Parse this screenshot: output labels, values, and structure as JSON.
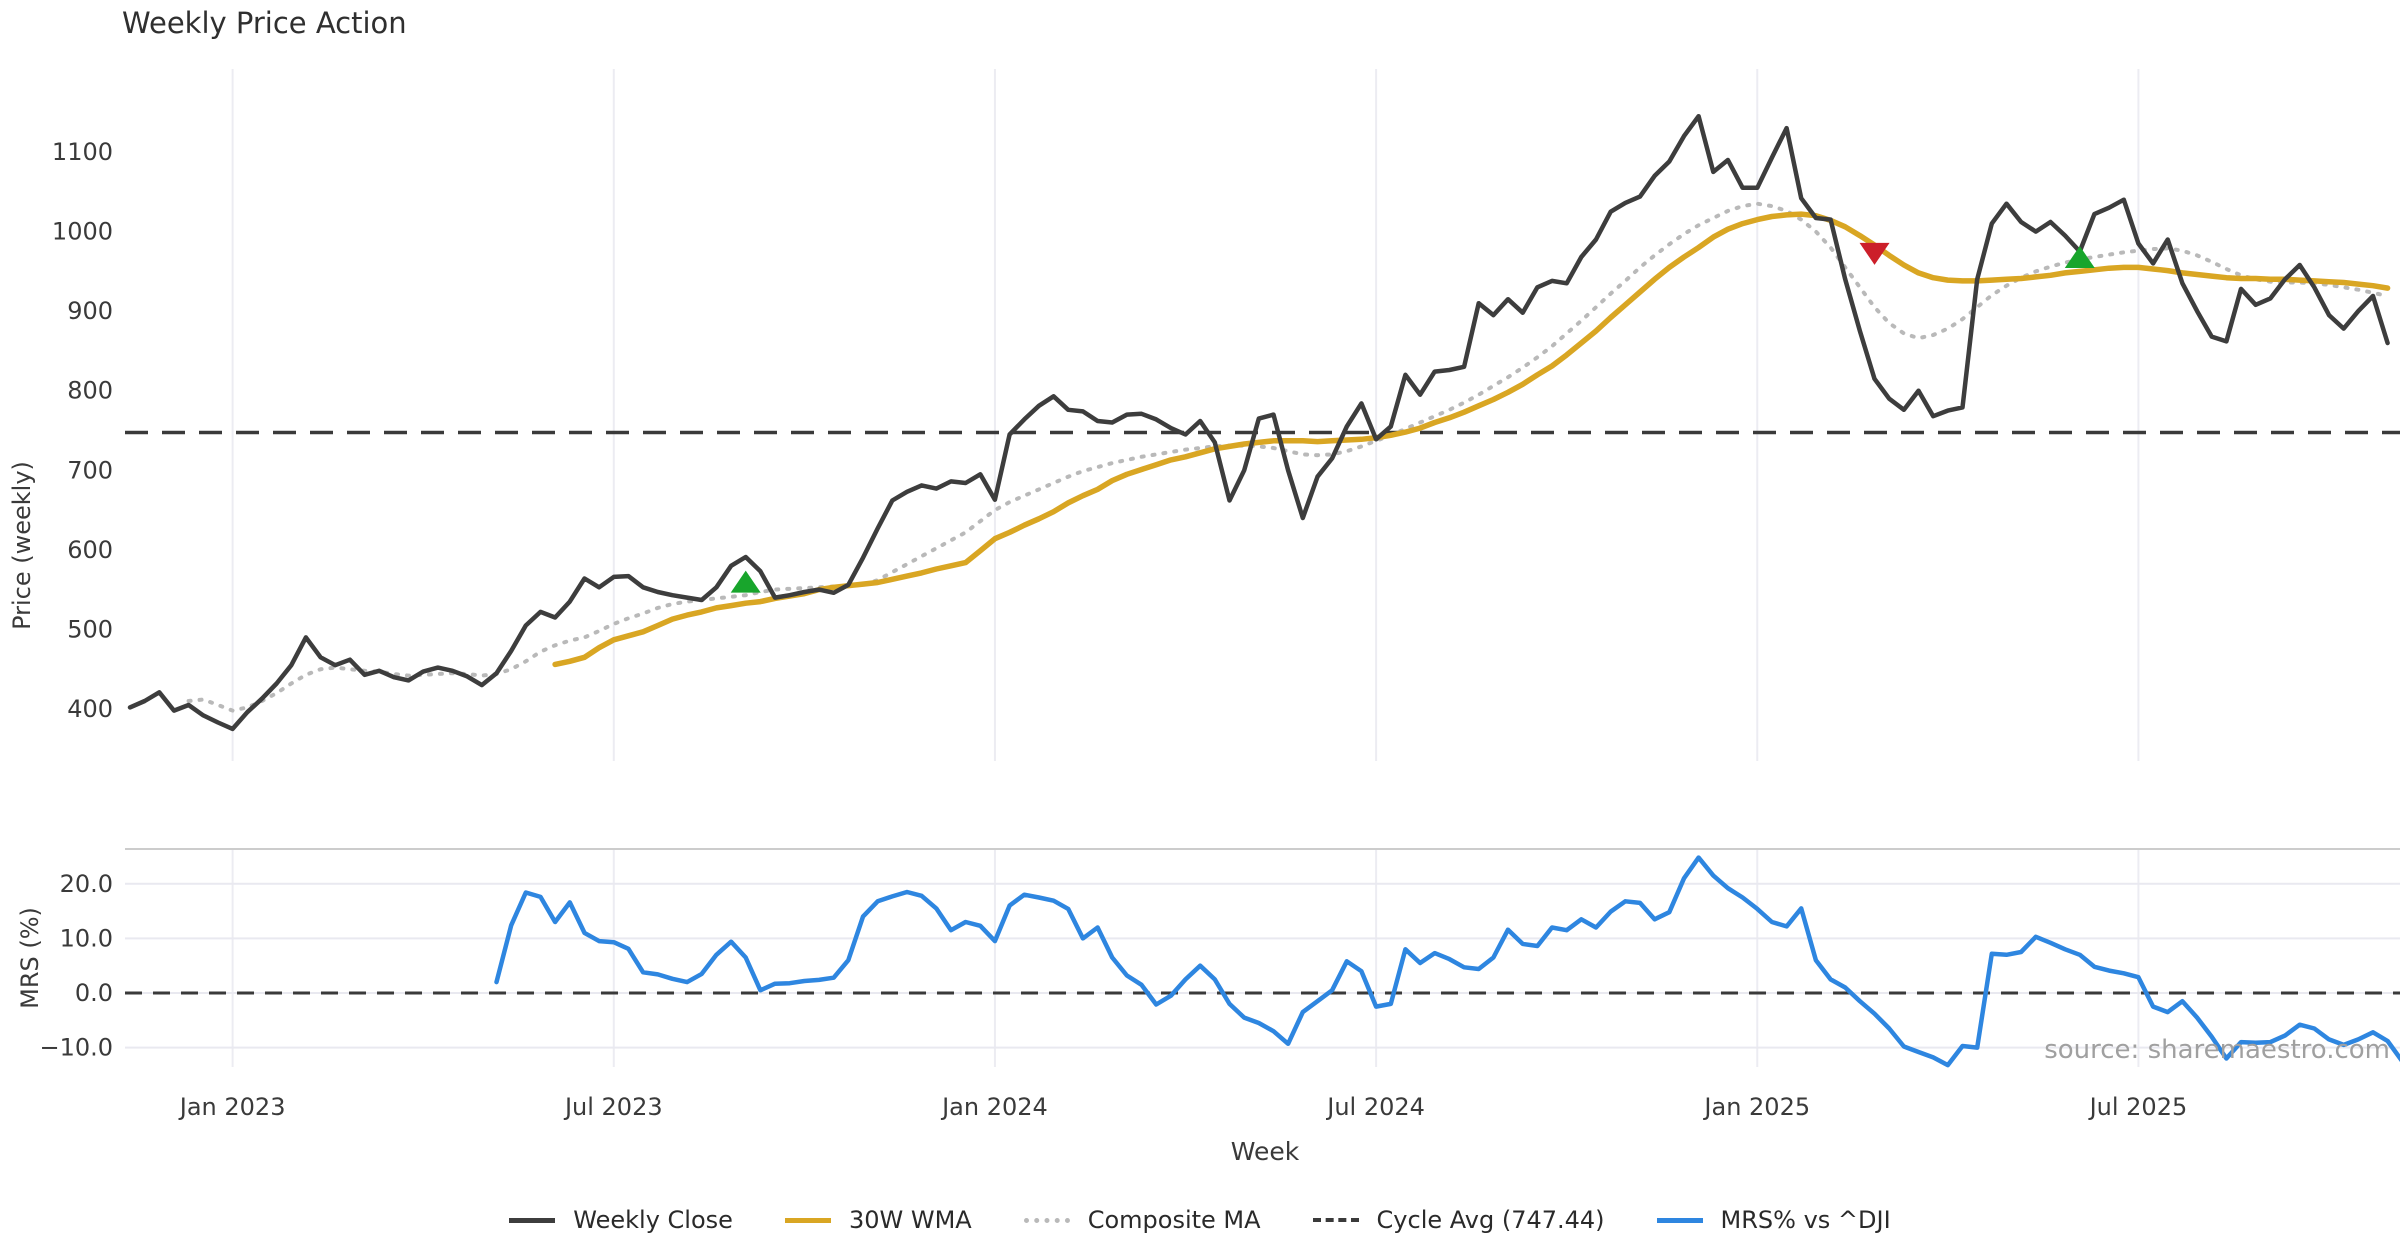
{
  "title": "Weekly Price Action",
  "source_note": "source: sharemaestro.com",
  "colors": {
    "close": "#3d3d3d",
    "wma": "#d9a623",
    "composite": "#b9b9b9",
    "cycle": "#3a3a3a",
    "mrs": "#2e86e0",
    "marker_up": "#18a52c",
    "marker_down": "#cc1f2a",
    "grid": "#ececf2",
    "spine": "#cccccc",
    "tick_text": "#3a3a3a",
    "source_text": "#a0a0a0"
  },
  "chart_data": {
    "type": "line",
    "title": "Weekly Price Action",
    "xlabel": "Week",
    "x_unit": "weekly",
    "x_start_date": "2022-11-14",
    "n_weeks": 155,
    "x_ticks": [
      {
        "label": "Jan 2023",
        "week": 7
      },
      {
        "label": "Jul 2023",
        "week": 33
      },
      {
        "label": "Jan 2024",
        "week": 59
      },
      {
        "label": "Jul 2024",
        "week": 85
      },
      {
        "label": "Jan 2025",
        "week": 111
      },
      {
        "label": "Jul 2025",
        "week": 137
      }
    ],
    "panels": [
      {
        "id": "price",
        "ylabel": "Price (weekly)",
        "ylim": [
          335,
          1204
        ],
        "yticks": [
          400,
          500,
          600,
          700,
          800,
          900,
          1000,
          1100
        ],
        "grid": "vertical-only",
        "cycle_avg": 747.44,
        "series": [
          {
            "name": "Weekly Close",
            "style": "solid",
            "color_key": "close",
            "start_week": 0,
            "values": [
              402,
              410,
              421,
              398,
              405,
              392,
              383,
              375,
              396,
              413,
              432,
              455,
              490,
              465,
              455,
              462,
              443,
              448,
              440,
              436,
              447,
              452,
              448,
              441,
              430,
              445,
              473,
              505,
              522,
              515,
              535,
              564,
              553,
              566,
              567,
              553,
              547,
              543,
              540,
              537,
              553,
              580,
              591,
              573,
              540,
              543,
              547,
              550,
              546,
              556,
              590,
              627,
              662,
              673,
              681,
              677,
              686,
              684,
              695,
              663,
              745,
              764,
              781,
              793,
              776,
              774,
              762,
              760,
              770,
              771,
              764,
              753,
              745,
              762,
              735,
              662,
              700,
              765,
              770,
              700,
              640,
              692,
              715,
              755,
              784,
              739,
              755,
              820,
              795,
              824,
              826,
              830,
              910,
              895,
              915,
              898,
              930,
              938,
              935,
              968,
              990,
              1025,
              1036,
              1044,
              1070,
              1088,
              1120,
              1145,
              1075,
              1090,
              1055,
              1055,
              1093,
              1130,
              1042,
              1017,
              1015,
              940,
              875,
              815,
              790,
              776,
              800,
              768,
              775,
              779,
              940,
              1010,
              1035,
              1012,
              1000,
              1012,
              995,
              975,
              1022,
              1030,
              1040,
              985,
              960,
              990,
              935,
              900,
              868,
              862,
              928,
              908,
              916,
              940,
              958,
              930,
              895,
              878,
              900,
              919,
              860
            ]
          },
          {
            "name": "30W WMA",
            "style": "solid",
            "color_key": "wma",
            "start_week": 29,
            "values": [
              456,
              460,
              465,
              477,
              487,
              492,
              497,
              505,
              513,
              518,
              522,
              527,
              530,
              533,
              535,
              539,
              542,
              545,
              550,
              553,
              555,
              557,
              559,
              563,
              567,
              571,
              576,
              580,
              584,
              599,
              614,
              622,
              631,
              639,
              648,
              659,
              668,
              676,
              687,
              695,
              701,
              707,
              713,
              717,
              722,
              727,
              730,
              733,
              735,
              737,
              737,
              737,
              736,
              737,
              738,
              739,
              741,
              744,
              748,
              753,
              760,
              766,
              773,
              781,
              789,
              798,
              808,
              820,
              831,
              845,
              860,
              875,
              892,
              908,
              924,
              940,
              955,
              968,
              980,
              993,
              1003,
              1010,
              1015,
              1019,
              1021,
              1022,
              1020,
              1014,
              1006,
              995,
              983,
              970,
              958,
              948,
              942,
              939,
              938,
              938,
              939,
              940,
              941,
              943,
              945,
              948,
              950,
              952,
              954,
              955,
              955,
              953,
              951,
              948,
              946,
              944,
              942,
              941,
              941,
              940,
              940,
              939,
              938,
              937,
              936,
              934,
              932,
              929
            ]
          },
          {
            "name": "Composite MA",
            "style": "dotted",
            "color_key": "composite",
            "start_week": 4,
            "values": [
              410,
              412,
              405,
              398,
              402,
              410,
              420,
              432,
              443,
              450,
              452,
              450,
              448,
              447,
              444,
              442,
              443,
              444,
              445,
              444,
              442,
              444,
              450,
              460,
              472,
              480,
              486,
              490,
              498,
              507,
              514,
              520,
              527,
              532,
              535,
              537,
              539,
              541,
              543,
              547,
              550,
              551,
              552,
              553,
              554,
              555,
              556,
              562,
              572,
              582,
              592,
              602,
              612,
              622,
              636,
              650,
              660,
              668,
              676,
              684,
              692,
              699,
              704,
              709,
              713,
              717,
              720,
              723,
              726,
              728,
              730,
              731,
              731,
              730,
              728,
              724,
              720,
              719,
              720,
              724,
              730,
              737,
              744,
              752,
              760,
              768,
              776,
              785,
              795,
              806,
              817,
              829,
              842,
              856,
              872,
              888,
              905,
              922,
              938,
              955,
              970,
              984,
              997,
              1008,
              1017,
              1026,
              1032,
              1035,
              1032,
              1026,
              1015,
              1000,
              980,
              955,
              930,
              905,
              885,
              872,
              866,
              870,
              878,
              890,
              905,
              920,
              932,
              942,
              950,
              956,
              961,
              965,
              968,
              971,
              974,
              976,
              978,
              979,
              976,
              970,
              962,
              953,
              945,
              940,
              937,
              936,
              936,
              935,
              933,
              930,
              927,
              923,
              919
            ]
          }
        ],
        "markers": [
          {
            "week": 42,
            "value": 560,
            "shape": "triangle-up",
            "color_key": "marker_up"
          },
          {
            "week": 119,
            "value": 972,
            "shape": "triangle-down",
            "color_key": "marker_down"
          },
          {
            "week": 133,
            "value": 968,
            "shape": "triangle-up",
            "color_key": "marker_up"
          }
        ]
      },
      {
        "id": "mrs",
        "ylabel": "MRS (%)",
        "ylim": [
          -13.6,
          26.4
        ],
        "yticks": [
          20.0,
          10.0,
          0.0,
          -10.0
        ],
        "ytick_labels": [
          "20.0",
          "10.0",
          "0.0",
          "−10.0"
        ],
        "zero_line": 0,
        "series": [
          {
            "name": "MRS% vs ^DJI",
            "style": "solid",
            "color_key": "mrs",
            "start_week": 25,
            "values": [
              2.0,
              12.4,
              18.4,
              17.6,
              13.0,
              16.6,
              11.0,
              9.5,
              9.3,
              8.1,
              3.8,
              3.4,
              2.6,
              2.0,
              3.5,
              7.0,
              9.4,
              6.5,
              0.5,
              1.7,
              1.8,
              2.2,
              2.4,
              2.8,
              6.0,
              14.0,
              16.8,
              17.7,
              18.5,
              17.8,
              15.5,
              11.5,
              13.0,
              12.3,
              9.5,
              16.0,
              18.0,
              17.5,
              16.9,
              15.4,
              10.0,
              12.0,
              6.5,
              3.2,
              1.5,
              -2.1,
              -0.5,
              2.5,
              5.0,
              2.5,
              -2.0,
              -4.5,
              -5.5,
              -7.0,
              -9.3,
              -3.5,
              -1.5,
              0.5,
              5.8,
              4.0,
              -2.5,
              -2.0,
              8.0,
              5.5,
              7.3,
              6.2,
              4.7,
              4.4,
              6.5,
              11.6,
              9.0,
              8.6,
              12.0,
              11.5,
              13.5,
              12.0,
              14.9,
              16.8,
              16.5,
              13.5,
              14.8,
              21.0,
              24.8,
              21.5,
              19.2,
              17.5,
              15.4,
              13.0,
              12.2,
              15.5,
              6.0,
              2.5,
              1.0,
              -1.5,
              -3.8,
              -6.5,
              -9.8,
              -10.8,
              -11.8,
              -13.2,
              -9.7,
              -10.0,
              7.2,
              7.0,
              7.5,
              10.3,
              9.2,
              8.0,
              7.0,
              4.8,
              4.1,
              3.6,
              2.9,
              -2.5,
              -3.5,
              -1.5,
              -4.5,
              -8.0,
              -12.0,
              -9.0,
              -9.1,
              -9.0,
              -7.8,
              -5.8,
              -6.5,
              -8.5,
              -9.5,
              -8.5,
              -7.2,
              -8.8,
              -12.5
            ]
          }
        ]
      }
    ],
    "legend": [
      {
        "label": "Weekly Close",
        "style": "solid",
        "color_key": "close"
      },
      {
        "label": "30W WMA",
        "style": "solid",
        "color_key": "wma"
      },
      {
        "label": "Composite MA",
        "style": "dotted",
        "color_key": "composite"
      },
      {
        "label": "Cycle Avg (747.44)",
        "style": "dashed",
        "color_key": "cycle"
      },
      {
        "label": "MRS% vs ^DJI",
        "style": "solid",
        "color_key": "mrs"
      }
    ]
  }
}
